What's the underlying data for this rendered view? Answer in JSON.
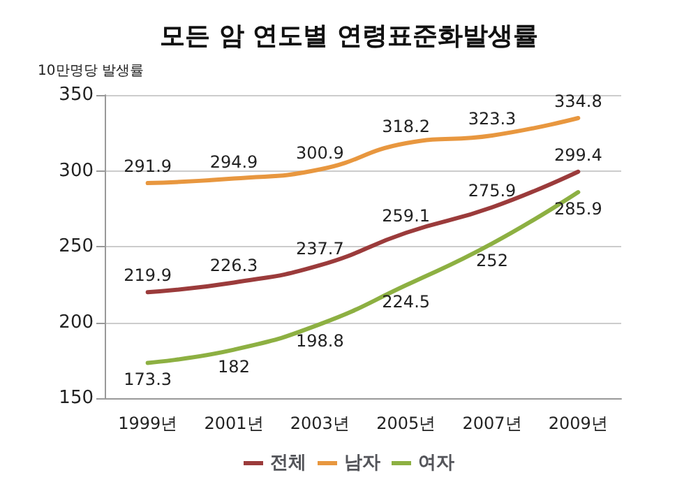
{
  "chart_data": {
    "type": "line",
    "title": "모든 암 연도별 연령표준화발생률",
    "ylabel": "10만명당 발생률",
    "categories": [
      "1999년",
      "2001년",
      "2003년",
      "2005년",
      "2007년",
      "2009년"
    ],
    "series": [
      {
        "name": "전체",
        "color": "#9b3b3b",
        "values": [
          219.9,
          226.3,
          237.7,
          259.1,
          275.9,
          299.4
        ]
      },
      {
        "name": "남자",
        "color": "#e8973f",
        "values": [
          291.9,
          294.9,
          300.9,
          318.2,
          323.3,
          334.8
        ]
      },
      {
        "name": "여자",
        "color": "#8db042",
        "values": [
          173.3,
          182,
          198.8,
          224.5,
          252,
          285.9
        ]
      }
    ],
    "ylim": [
      150,
      350
    ],
    "yticks": [
      150,
      200,
      250,
      300,
      350
    ],
    "grid": "y",
    "legend": "bottom",
    "data_labels": true,
    "marker": "none",
    "line_style": "solid"
  }
}
